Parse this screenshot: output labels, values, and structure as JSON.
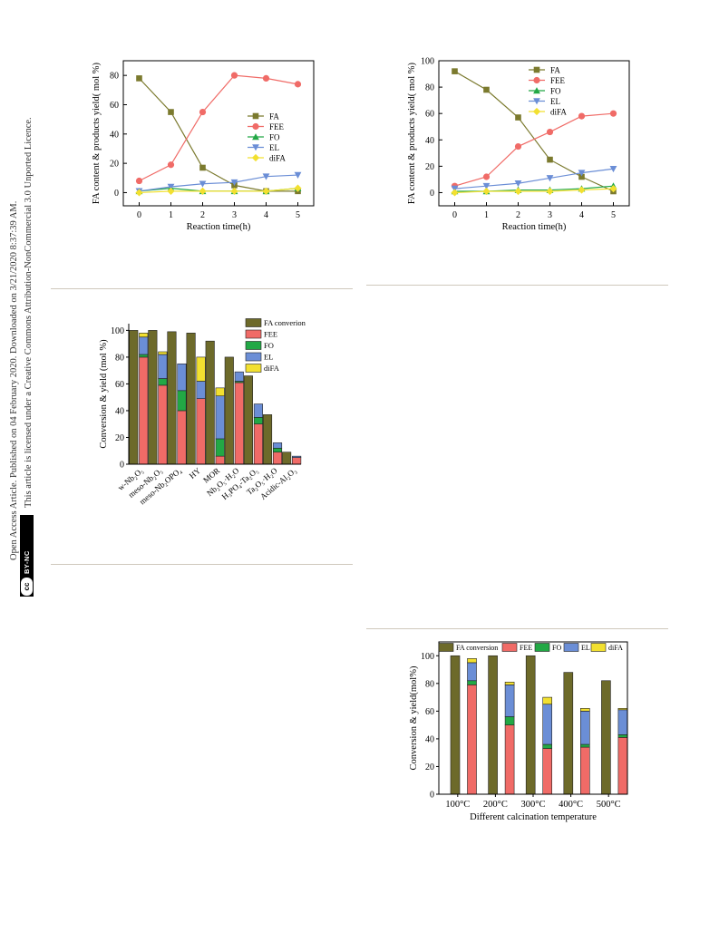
{
  "sidebar": {
    "access_line": "Open Access Article. Published on 04 February 2020. Downloaded on 3/21/2020 8:37:39 AM.",
    "license_line": "This article is licensed under a Creative Commons Attribution-NonCommercial 3.0 Unported Licence.",
    "cc_badge": "cc",
    "cc_text": "BY-NC"
  },
  "colors": {
    "FA": "#7b7a2e",
    "FEE": "#f06b67",
    "FO": "#22a845",
    "EL": "#6b8ed6",
    "diFA": "#f2e030",
    "FA_bar": "#6d6a2a",
    "separator": "#cfc8bc"
  },
  "chart_data": [
    {
      "type": "line",
      "xlabel": "Reaction time(h)",
      "ylabel": "FA content & products yield( mol %)",
      "x": [
        0,
        1,
        2,
        3,
        4,
        5
      ],
      "xticks": [
        "0",
        "1",
        "2",
        "3",
        "4",
        "5"
      ],
      "yticks": [
        "0",
        "20",
        "40",
        "60",
        "80"
      ],
      "xlim": [
        -0.5,
        5.5
      ],
      "ylim": [
        -9,
        90
      ],
      "legend_position": "right-middle",
      "series": [
        {
          "name": "FA",
          "values": [
            78,
            55,
            17,
            5,
            1,
            1
          ]
        },
        {
          "name": "FEE",
          "values": [
            8,
            19,
            55,
            80,
            78,
            74
          ]
        },
        {
          "name": "FO",
          "values": [
            1,
            3,
            1,
            1,
            1,
            3
          ]
        },
        {
          "name": "EL",
          "values": [
            1,
            4,
            6,
            7,
            11,
            12
          ]
        },
        {
          "name": "diFA",
          "values": [
            0,
            1,
            1,
            1,
            1,
            3
          ]
        }
      ]
    },
    {
      "type": "line",
      "xlabel": "Reaction time(h)",
      "ylabel": "FA content & products yield( mol %)",
      "x": [
        0,
        1,
        2,
        3,
        4,
        5
      ],
      "xticks": [
        "0",
        "1",
        "2",
        "3",
        "4",
        "5"
      ],
      "yticks": [
        "0",
        "20",
        "40",
        "60",
        "80",
        "100"
      ],
      "xlim": [
        -0.5,
        5.5
      ],
      "ylim": [
        -10,
        100
      ],
      "legend_position": "top-right",
      "series": [
        {
          "name": "FA",
          "values": [
            92,
            78,
            57,
            25,
            12,
            1
          ]
        },
        {
          "name": "FEE",
          "values": [
            5,
            12,
            35,
            46,
            58,
            60
          ]
        },
        {
          "name": "FO",
          "values": [
            1,
            1,
            2,
            2,
            3,
            5
          ]
        },
        {
          "name": "EL",
          "values": [
            3,
            5,
            7,
            11,
            15,
            18
          ]
        },
        {
          "name": "diFA",
          "values": [
            0,
            1,
            1,
            1,
            2,
            3
          ]
        }
      ]
    },
    {
      "type": "bar",
      "ylabel": "Conversion & yield (mol %)",
      "ylim": [
        0,
        105
      ],
      "yticks": [
        "0",
        "20",
        "40",
        "60",
        "80",
        "100"
      ],
      "categories": [
        "w-Nb₂O₅",
        "meso-Nb₂O₅",
        "meso-Nb₂OPO₄",
        "HY",
        "MOR",
        "Nb₂O₅·H₂O",
        "H₃PO₄-Ta₂O₅",
        "Ta₂O₅·H₂O",
        "Acidic-Al₂O₃"
      ],
      "legend_position": "top-right",
      "conversion_series": {
        "name": "FA converion",
        "values": [
          100,
          100,
          99,
          98,
          92,
          80,
          66,
          37,
          9
        ]
      },
      "stacked_series": [
        {
          "name": "FEE",
          "values": [
            80,
            59,
            40,
            49,
            6,
            61,
            30,
            9,
            5
          ]
        },
        {
          "name": "FO",
          "values": [
            2,
            5,
            15,
            0,
            13,
            1,
            5,
            3,
            0
          ]
        },
        {
          "name": "EL",
          "values": [
            13,
            18,
            20,
            13,
            32,
            7,
            10,
            4,
            1
          ]
        },
        {
          "name": "diFA",
          "values": [
            3,
            2,
            0,
            18,
            6,
            0,
            0,
            0,
            0
          ]
        }
      ]
    },
    {
      "type": "bar",
      "xlabel": "Different calcination temperature",
      "ylabel": "Conversion & yield(mol%)",
      "ylim": [
        0,
        110
      ],
      "yticks": [
        "0",
        "20",
        "40",
        "60",
        "80",
        "100"
      ],
      "categories": [
        "100°C",
        "200°C",
        "300°C",
        "400°C",
        "500°C"
      ],
      "legend_position": "top",
      "conversion_series": {
        "name": "FA conversion",
        "values": [
          100,
          100,
          100,
          88,
          82
        ]
      },
      "stacked_series": [
        {
          "name": "FEE",
          "values": [
            79,
            50,
            33,
            34,
            41
          ]
        },
        {
          "name": "FO",
          "values": [
            3,
            6,
            3,
            2,
            2
          ]
        },
        {
          "name": "EL",
          "values": [
            13,
            23,
            29,
            24,
            18
          ]
        },
        {
          "name": "diFA",
          "values": [
            3,
            2,
            5,
            2,
            1
          ]
        }
      ]
    }
  ]
}
